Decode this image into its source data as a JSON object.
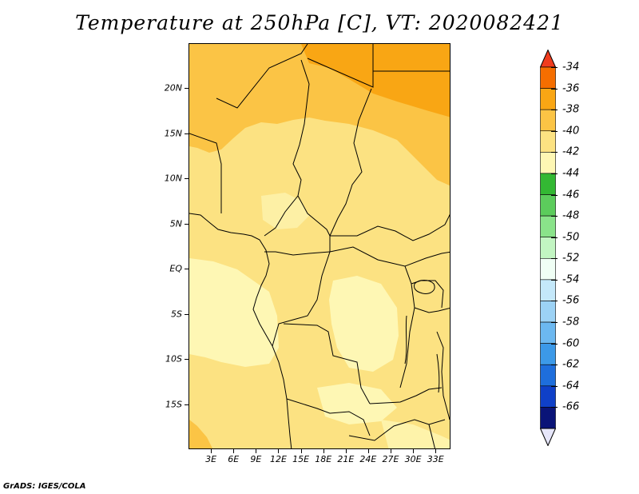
{
  "title": "Temperature at 250hPa [C], VT: 2020082421",
  "footer": "GrADS: IGES/COLA",
  "map": {
    "lon_range": [
      0,
      35
    ],
    "lat_range": [
      -20,
      25
    ],
    "lat_labels": [
      {
        "lat": 20,
        "text": "20N"
      },
      {
        "lat": 15,
        "text": "15N"
      },
      {
        "lat": 10,
        "text": "10N"
      },
      {
        "lat": 5,
        "text": "5N"
      },
      {
        "lat": 0,
        "text": "EQ"
      },
      {
        "lat": -5,
        "text": "5S"
      },
      {
        "lat": -10,
        "text": "10S"
      },
      {
        "lat": -15,
        "text": "15S"
      }
    ],
    "lon_labels": [
      {
        "lon": 3,
        "text": "3E"
      },
      {
        "lon": 6,
        "text": "6E"
      },
      {
        "lon": 9,
        "text": "9E"
      },
      {
        "lon": 12,
        "text": "12E"
      },
      {
        "lon": 15,
        "text": "15E"
      },
      {
        "lon": 18,
        "text": "18E"
      },
      {
        "lon": 21,
        "text": "21E"
      },
      {
        "lon": 24,
        "text": "24E"
      },
      {
        "lon": 27,
        "text": "27E"
      },
      {
        "lon": 30,
        "text": "30E"
      },
      {
        "lon": 33,
        "text": "33E"
      }
    ]
  },
  "colorbar": {
    "labels": [
      "-34",
      "-36",
      "-38",
      "-40",
      "-42",
      "-44",
      "-46",
      "-48",
      "-50",
      "-52",
      "-54",
      "-56",
      "-58",
      "-60",
      "-62",
      "-64",
      "-66"
    ],
    "colors": [
      "#f03c1e",
      "#f56e00",
      "#f9a614",
      "#fbc445",
      "#fce282",
      "#fef7b4",
      "#33b833",
      "#5ccc5c",
      "#8ae38a",
      "#c2f5c2",
      "#f0fff5",
      "#c4e8fa",
      "#9cd2f5",
      "#6cb8f0",
      "#3c99e8",
      "#1e6edc",
      "#0f40c8",
      "#0a1478",
      "#e6e6fa"
    ]
  }
}
